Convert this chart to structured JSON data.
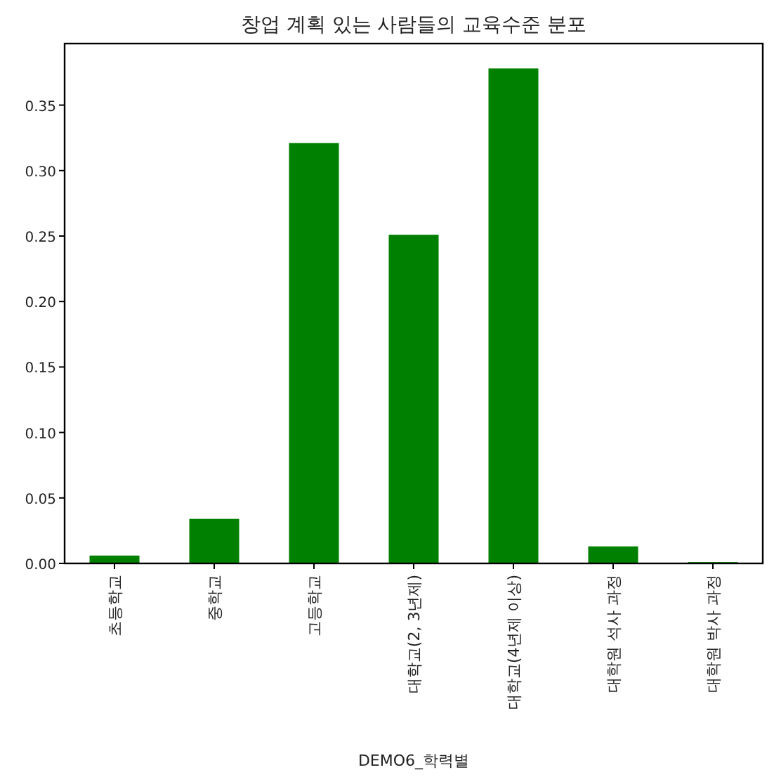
{
  "chart_data": {
    "type": "bar",
    "title": "창업 계획 있는 사람들의 교육수준 분포",
    "xlabel": "DEMO6_학력별",
    "categories": [
      "초등학교",
      "중학교",
      "고등학교",
      "대학교(2, 3년제)",
      "대학교(4년제 이상)",
      "대학원 석사 과정",
      "대학원 박사 과정"
    ],
    "values": [
      0.006,
      0.034,
      0.321,
      0.251,
      0.378,
      0.013,
      0.001
    ],
    "color": "#008000",
    "ylim": [
      0,
      0.397
    ],
    "yticks": [
      {
        "value": 0,
        "label": "0.00"
      },
      {
        "value": 0.05,
        "label": "0.05"
      },
      {
        "value": 0.1,
        "label": "0.10"
      },
      {
        "value": 0.15,
        "label": "0.15"
      },
      {
        "value": 0.2,
        "label": "0.20"
      },
      {
        "value": 0.25,
        "label": "0.25"
      },
      {
        "value": 0.3,
        "label": "0.30"
      },
      {
        "value": 0.35,
        "label": "0.35"
      }
    ],
    "grid": false
  }
}
